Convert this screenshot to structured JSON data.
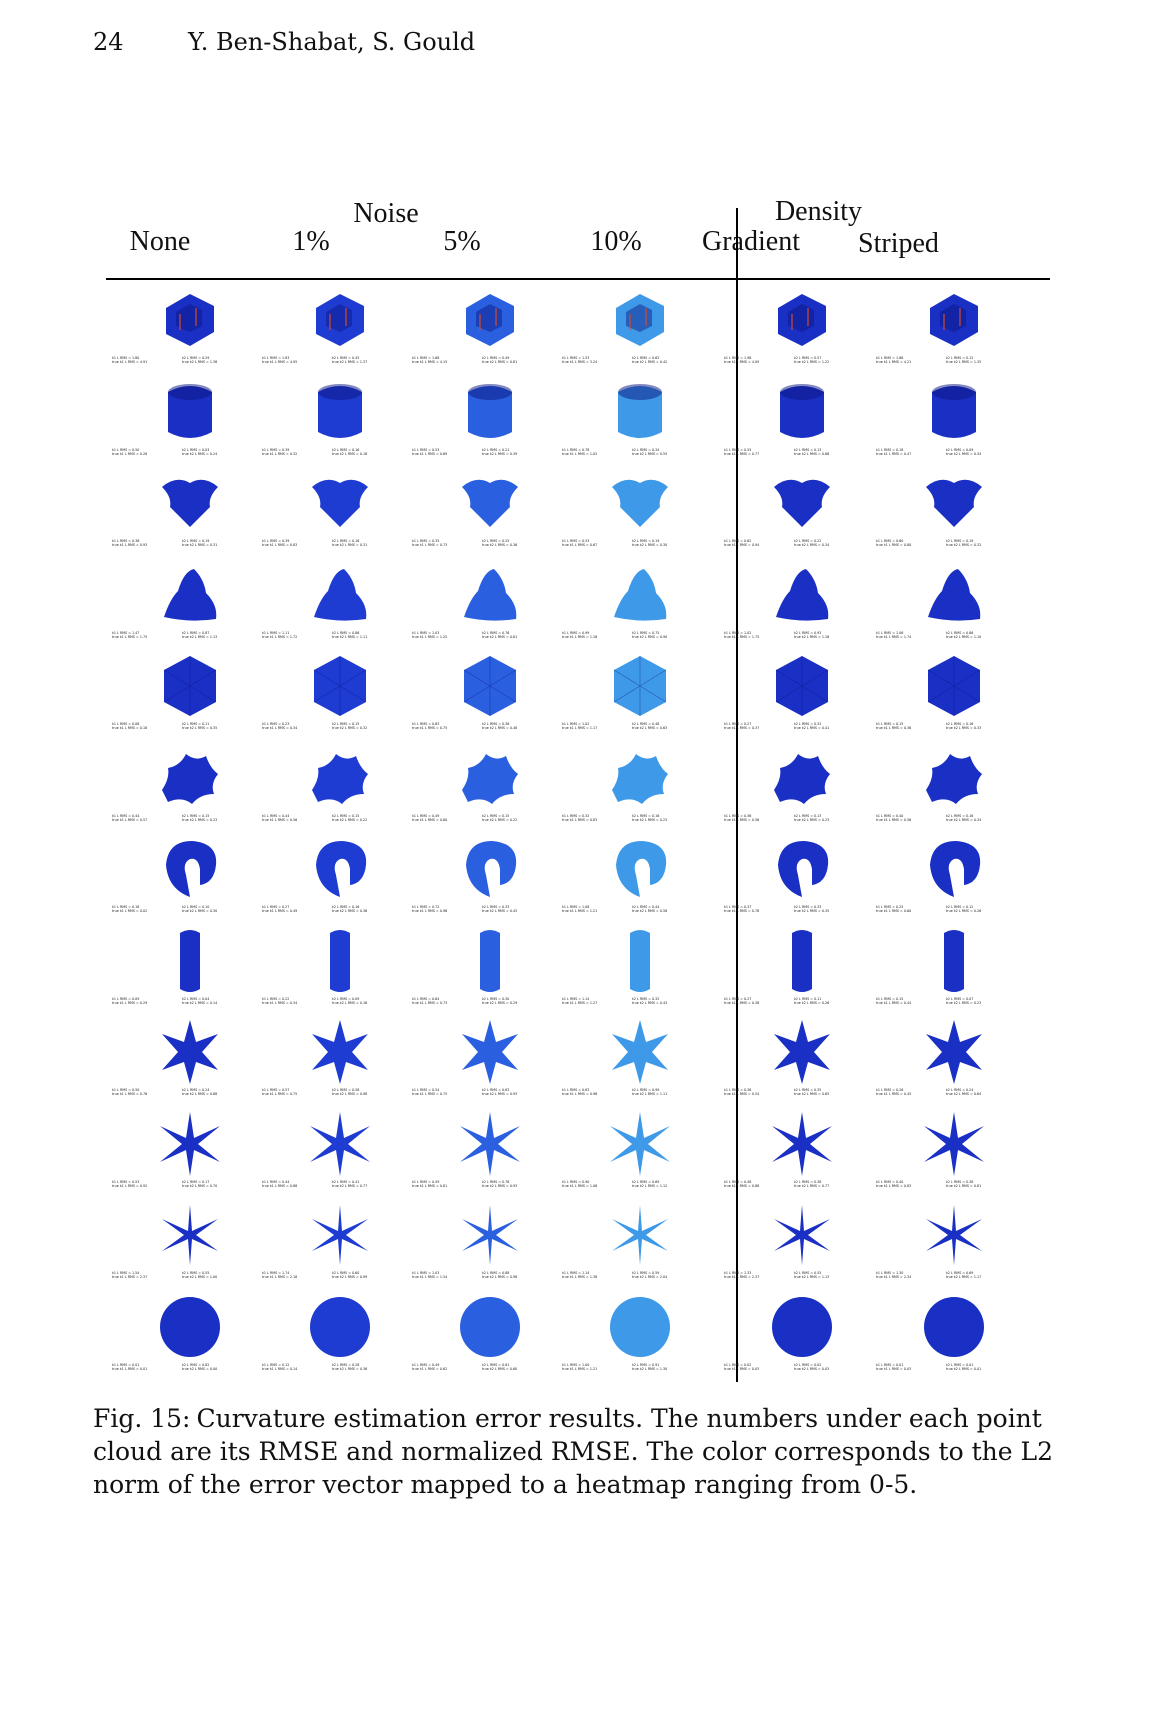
{
  "header": {
    "page_number": "24",
    "authors": "Y. Ben-Shabat, S. Gould"
  },
  "figure": {
    "group_headers": {
      "noise": "Noise",
      "density": "Density"
    },
    "columns": [
      "None",
      "1%",
      "5%",
      "10%",
      "Gradient",
      "Striped"
    ],
    "rows": [
      {
        "shape": "house",
        "metrics": [
          [
            "k1 L RMS = 1.80",
            "true k1 L RMS = 4.91",
            "k2 L RMS = 0.29",
            "true k2 L RMS = 1.38"
          ],
          [
            "k1 L RMS = 1.83",
            "true k1 L RMS = 4.95",
            "k2 L RMS = 0.45",
            "true k2 L RMS = 1.37"
          ],
          [
            "k1 L RMS = 1.68",
            "true k1 L RMS = 4.15",
            "k2 L RMS = 0.49",
            "true k2 L RMS = 0.81"
          ],
          [
            "k1 L RMS = 1.53",
            "true k1 L RMS = 3.24",
            "k2 L RMS = 0.62",
            "true k2 L RMS = 0.42"
          ],
          [
            "k1 L RMS = 1.98",
            "true k1 L RMS = 4.09",
            "k2 L RMS = 0.57",
            "true k2 L RMS = 1.22"
          ],
          [
            "k1 L RMS = 1.86",
            "true k1 L RMS = 4.21",
            "k2 L RMS = 0.12",
            "true k2 L RMS = 1.35"
          ]
        ]
      },
      {
        "shape": "cylinder",
        "metrics": [
          [
            "k1 L RMS = 0.50",
            "true k1 L RMS = 0.28",
            "k2 L RMS = 0.03",
            "true k2 L RMS = 0.24"
          ],
          [
            "k1 L RMS = 0.39",
            "true k1 L RMS = 0.32",
            "k2 L RMS = 0.16",
            "true k2 L RMS = 0.18"
          ],
          [
            "k1 L RMS = 0.53",
            "true k1 L RMS = 0.69",
            "k2 L RMS = 0.21",
            "true k2 L RMS = 0.39"
          ],
          [
            "k1 L RMS = 0.78",
            "true k1 L RMS = 1.02",
            "k2 L RMS = 0.34",
            "true k2 L RMS = 0.55"
          ],
          [
            "k1 L RMS = 0.55",
            "true k1 L RMS = 0.77",
            "k2 L RMS = 0.13",
            "true k2 L RMS = 0.86"
          ],
          [
            "k1 L RMS = 0.18",
            "true k1 L RMS = 0.47",
            "k2 L RMS = 0.09",
            "true k2 L RMS = 0.34"
          ]
        ]
      },
      {
        "shape": "flower-vase",
        "metrics": [
          [
            "k1 L RMS = 0.36",
            "true k1 L RMS = 0.93",
            "k2 L RMS = 0.19",
            "true k2 L RMS = 0.31"
          ],
          [
            "k1 L RMS = 0.39",
            "true k1 L RMS = 0.83",
            "k2 L RMS = 0.16",
            "true k2 L RMS = 0.31"
          ],
          [
            "k1 L RMS = 0.35",
            "true k1 L RMS = 0.73",
            "k2 L RMS = 0.25",
            "true k2 L RMS = 0.36"
          ],
          [
            "k1 L RMS = 0.53",
            "true k1 L RMS = 0.67",
            "k2 L RMS = 0.19",
            "true k2 L RMS = 0.30"
          ],
          [
            "k1 L RMS = 0.62",
            "true k1 L RMS = 0.94",
            "k2 L RMS = 0.22",
            "true k2 L RMS = 0.34"
          ],
          [
            "k1 L RMS = 0.60",
            "true k1 L RMS = 0.80",
            "k2 L RMS = 0.19",
            "true k2 L RMS = 0.32"
          ]
        ]
      },
      {
        "shape": "organic-blob",
        "metrics": [
          [
            "k1 L RMS = 1.47",
            "true k1 L RMS = 1.75",
            "k2 L RMS = 0.87",
            "true k2 L RMS = 1.13"
          ],
          [
            "k1 L RMS = 1.11",
            "true k1 L RMS = 1.72",
            "k2 L RMS = 0.86",
            "true k2 L RMS = 1.11"
          ],
          [
            "k1 L RMS = 1.03",
            "true k1 L RMS = 1.25",
            "k2 L RMS = 0.76",
            "true k2 L RMS = 0.81"
          ],
          [
            "k1 L RMS = 0.99",
            "true k1 L RMS = 1.16",
            "k2 L RMS = 0.75",
            "true k2 L RMS = 0.90"
          ],
          [
            "k1 L RMS = 1.02",
            "true k1 L RMS = 1.75",
            "k2 L RMS = 0.93",
            "true k2 L RMS = 1.16"
          ],
          [
            "k1 L RMS = 1.06",
            "true k1 L RMS = 1.74",
            "k2 L RMS = 0.86",
            "true k2 L RMS = 1.10"
          ]
        ]
      },
      {
        "shape": "icosahedron",
        "metrics": [
          [
            "k1 L RMS = 0.08",
            "true k1 L RMS = 0.18",
            "k2 L RMS = 0.11",
            "true k2 L RMS = 0.35"
          ],
          [
            "k1 L RMS = 0.23",
            "true k1 L RMS = 0.34",
            "k2 L RMS = 0.15",
            "true k2 L RMS = 0.32"
          ],
          [
            "k1 L RMS = 0.63",
            "true k1 L RMS = 0.75",
            "k2 L RMS = 0.36",
            "true k2 L RMS = 0.48"
          ],
          [
            "k1 L RMS = 1.02",
            "true k1 L RMS = 1.17",
            "k2 L RMS = 0.48",
            "true k2 L RMS = 0.63"
          ],
          [
            "k1 L RMS = 0.27",
            "true k1 L RMS = 0.37",
            "k2 L RMS = 0.32",
            "true k2 L RMS = 0.41"
          ],
          [
            "k1 L RMS = 0.15",
            "true k1 L RMS = 0.36",
            "k2 L RMS = 0.16",
            "true k2 L RMS = 0.33"
          ]
        ]
      },
      {
        "shape": "star-blob",
        "metrics": [
          [
            "k1 L RMS = 0.44",
            "true k1 L RMS = 0.57",
            "k2 L RMS = 0.15",
            "true k2 L RMS = 0.23"
          ],
          [
            "k1 L RMS = 0.44",
            "true k1 L RMS = 0.56",
            "k2 L RMS = 0.15",
            "true k2 L RMS = 0.22"
          ],
          [
            "k1 L RMS = 0.49",
            "true k1 L RMS = 0.60",
            "k2 L RMS = 0.15",
            "true k2 L RMS = 0.22"
          ],
          [
            "k1 L RMS = 0.32",
            "true k1 L RMS = 0.83",
            "k2 L RMS = 0.16",
            "true k2 L RMS = 0.23"
          ],
          [
            "k1 L RMS = 0.36",
            "true k1 L RMS = 0.56",
            "k2 L RMS = 0.13",
            "true k2 L RMS = 0.23"
          ],
          [
            "k1 L RMS = 0.40",
            "true k1 L RMS = 0.56",
            "k2 L RMS = 0.16",
            "true k2 L RMS = 0.34"
          ]
        ]
      },
      {
        "shape": "torus-section",
        "metrics": [
          [
            "k1 L RMS = 0.18",
            "true k1 L RMS = 0.02",
            "k2 L RMS = 0.10",
            "true k2 L RMS = 0.30"
          ],
          [
            "k1 L RMS = 0.27",
            "true k1 L RMS = 0.49",
            "k2 L RMS = 0.16",
            "true k2 L RMS = 0.36"
          ],
          [
            "k1 L RMS = 0.72",
            "true k1 L RMS = 0.96",
            "k2 L RMS = 0.33",
            "true k2 L RMS = 0.45"
          ],
          [
            "k1 L RMS = 1.08",
            "true k1 L RMS = 1.21",
            "k2 L RMS = 0.44",
            "true k2 L RMS = 0.58"
          ],
          [
            "k1 L RMS = 0.37",
            "true k1 L RMS = 0.78",
            "k2 L RMS = 0.33",
            "true k2 L RMS = 0.35"
          ],
          [
            "k1 L RMS = 0.25",
            "true k1 L RMS = 0.60",
            "k2 L RMS = 0.12",
            "true k2 L RMS = 0.26"
          ]
        ]
      },
      {
        "shape": "tube",
        "metrics": [
          [
            "k1 L RMS = 0.09",
            "true k1 L RMS = 0.29",
            "k2 L RMS = 0.04",
            "true k2 L RMS = 0.14"
          ],
          [
            "k1 L RMS = 0.22",
            "true k1 L RMS = 0.34",
            "k2 L RMS = 0.09",
            "true k2 L RMS = 0.16"
          ],
          [
            "k1 L RMS = 0.64",
            "true k1 L RMS = 0.73",
            "k2 L RMS = 0.30",
            "true k2 L RMS = 0.29"
          ],
          [
            "k1 L RMS = 1.14",
            "true k1 L RMS = 1.27",
            "k2 L RMS = 0.32",
            "true k2 L RMS = 0.43"
          ],
          [
            "k1 L RMS = 0.27",
            "true k1 L RMS = 0.38",
            "k2 L RMS = 0.11",
            "true k2 L RMS = 0.26"
          ],
          [
            "k1 L RMS = 0.15",
            "true k1 L RMS = 0.44",
            "k2 L RMS = 0.07",
            "true k2 L RMS = 0.23"
          ]
        ]
      },
      {
        "shape": "star-6-thick",
        "metrics": [
          [
            "k1 L RMS = 0.50",
            "true k1 L RMS = 0.76",
            "k2 L RMS = 0.24",
            "true k2 L RMS = 0.88"
          ],
          [
            "k1 L RMS = 0.57",
            "true k1 L RMS = 0.75",
            "k2 L RMS = 0.58",
            "true k2 L RMS = 0.98"
          ],
          [
            "k1 L RMS = 0.54",
            "true k1 L RMS = 0.75",
            "k2 L RMS = 0.83",
            "true k2 L RMS = 0.93"
          ],
          [
            "k1 L RMS = 0.83",
            "true k1 L RMS = 0.96",
            "k2 L RMS = 0.99",
            "true k2 L RMS = 1.11"
          ],
          [
            "k1 L RMS = 0.36",
            "true k1 L RMS = 0.54",
            "k2 L RMS = 0.35",
            "true k2 L RMS = 0.65"
          ],
          [
            "k1 L RMS = 0.26",
            "true k1 L RMS = 0.45",
            "k2 L RMS = 0.24",
            "true k2 L RMS = 0.64"
          ]
        ]
      },
      {
        "shape": "star-6-medium",
        "metrics": [
          [
            "k1 L RMS = 0.53",
            "true k1 L RMS = 0.92",
            "k2 L RMS = 0.17",
            "true k2 L RMS = 0.70"
          ],
          [
            "k1 L RMS = 0.44",
            "true k1 L RMS = 0.88",
            "k2 L RMS = 0.41",
            "true k2 L RMS = 0.77"
          ],
          [
            "k1 L RMS = 0.59",
            "true k1 L RMS = 0.81",
            "k2 L RMS = 0.76",
            "true k2 L RMS = 0.93"
          ],
          [
            "k1 L RMS = 0.90",
            "true k1 L RMS = 1.06",
            "k2 L RMS = 0.69",
            "true k2 L RMS = 1.12"
          ],
          [
            "k1 L RMS = 0.48",
            "true k1 L RMS = 0.88",
            "k2 L RMS = 0.38",
            "true k2 L RMS = 0.77"
          ],
          [
            "k1 L RMS = 0.40",
            "true k1 L RMS = 0.83",
            "k2 L RMS = 0.38",
            "true k2 L RMS = 0.81"
          ]
        ]
      },
      {
        "shape": "star-6-thin",
        "metrics": [
          [
            "k1 L RMS = 1.54",
            "true k1 L RMS = 2.37",
            "k2 L RMS = 0.55",
            "true k2 L RMS = 1.00"
          ],
          [
            "k1 L RMS = 1.74",
            "true k1 L RMS = 2.18",
            "k2 L RMS = 0.60",
            "true k2 L RMS = 0.99"
          ],
          [
            "k1 L RMS = 1.03",
            "true k1 L RMS = 1.54",
            "k2 L RMS = 0.88",
            "true k2 L RMS = 0.98"
          ],
          [
            "k1 L RMS = 1.14",
            "true k1 L RMS = 1.38",
            "k2 L RMS = 0.59",
            "true k2 L RMS = 2.04"
          ],
          [
            "k1 L RMS = 1.33",
            "true k1 L RMS = 2.37",
            "k2 L RMS = 0.55",
            "true k2 L RMS = 1.13"
          ],
          [
            "k1 L RMS = 1.30",
            "true k1 L RMS = 2.34",
            "k2 L RMS = 0.69",
            "true k2 L RMS = 1.17"
          ]
        ]
      },
      {
        "shape": "sphere",
        "metrics": [
          [
            "k1 L RMS = 0.01",
            "true k1 L RMS = 0.01",
            "k2 L RMS = 0.82",
            "true k2 L RMS = 0.00"
          ],
          [
            "k1 L RMS = 0.12",
            "true k1 L RMS = 0.14",
            "k2 L RMS = 0.28",
            "true k2 L RMS = 0.36"
          ],
          [
            "k1 L RMS = 0.49",
            "true k1 L RMS = 0.62",
            "k2 L RMS = 0.81",
            "true k2 L RMS = 0.60"
          ],
          [
            "k1 L RMS = 1.00",
            "true k1 L RMS = 1.21",
            "k2 L RMS = 0.91",
            "true k2 L RMS = 1.30"
          ],
          [
            "k1 L RMS = 0.02",
            "true k1 L RMS = 0.03",
            "k2 L RMS = 0.02",
            "true k2 L RMS = 0.03"
          ],
          [
            "k1 L RMS = 0.01",
            "true k1 L RMS = 0.03",
            "k2 L RMS = 0.01",
            "true k2 L RMS = 0.01"
          ]
        ]
      }
    ],
    "column_colors": [
      "#1a2fc4",
      "#1e3bd2",
      "#2a5fe0",
      "#3e9ae8",
      "#1a2fc4",
      "#1a2fc4"
    ],
    "dark_color": "#0a1680",
    "highlight_color": "#d44a2a"
  },
  "caption": {
    "label": "Fig. 15:",
    "text": "Curvature estimation error results. The numbers under each point cloud are its RMSE and normalized RMSE. The color corresponds to the L2 norm of the error vector mapped to a heatmap ranging from 0-5."
  }
}
